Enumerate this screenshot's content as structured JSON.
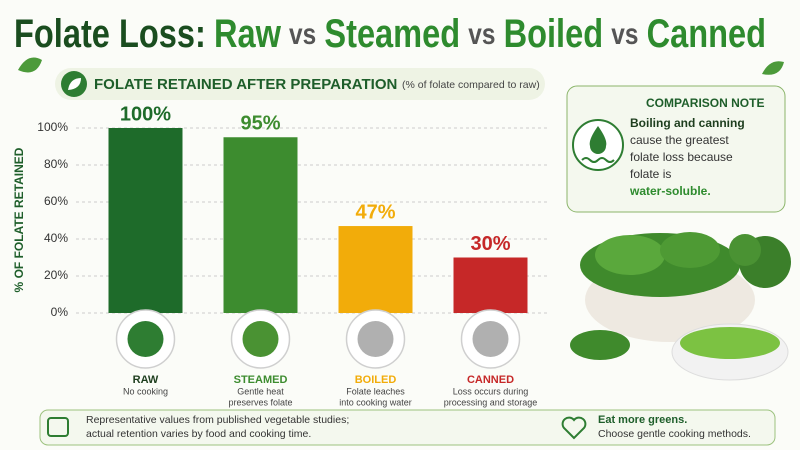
{
  "title_parts": [
    "Folate Loss:",
    "Raw",
    "vs",
    "Steamed",
    "vs",
    "Boiled",
    "vs",
    "Canned"
  ],
  "chart_data": {
    "type": "bar",
    "title": "FOLATE RETAINED AFTER PREPARATION",
    "subtitle": "(% of folate compared to raw)",
    "y_label": "% OF FOLATE RETAINED",
    "categories": [
      "RAW",
      "STEAMED",
      "BOILED",
      "CANNED"
    ],
    "descriptions": [
      [
        "No cooking"
      ],
      [
        "Gentle heat",
        "preserves folate"
      ],
      [
        "Folate leaches",
        "into cooking water"
      ],
      [
        "Loss occurs during",
        "processing and storage"
      ]
    ],
    "values": [
      100,
      95,
      47,
      30
    ],
    "value_labels": [
      "100%",
      "95%",
      "47%",
      "30%"
    ],
    "colors": [
      "#1e6b2a",
      "#3d8c2f",
      "#f2ac0a",
      "#c62828"
    ],
    "ylim": [
      0,
      100
    ],
    "yticks": [
      {
        "value": 0,
        "label": "0%"
      },
      {
        "value": 20,
        "label": "20%"
      },
      {
        "value": 40,
        "label": "40%"
      },
      {
        "value": 60,
        "label": "60%"
      },
      {
        "value": 80,
        "label": "80%"
      },
      {
        "value": 100,
        "label": "100%"
      }
    ],
    "grid": true
  },
  "note": {
    "title": "COMPARISON NOTE",
    "lines": [
      "Boiling and canning",
      "cause the greatest",
      "folate loss because",
      "folate is",
      "water-soluble."
    ]
  },
  "footer": {
    "left": [
      "Representative values from published vegetable studies;",
      "actual retention varies by food and cooking time."
    ],
    "right": [
      "Eat more greens.",
      "Choose gentle cooking methods."
    ]
  }
}
